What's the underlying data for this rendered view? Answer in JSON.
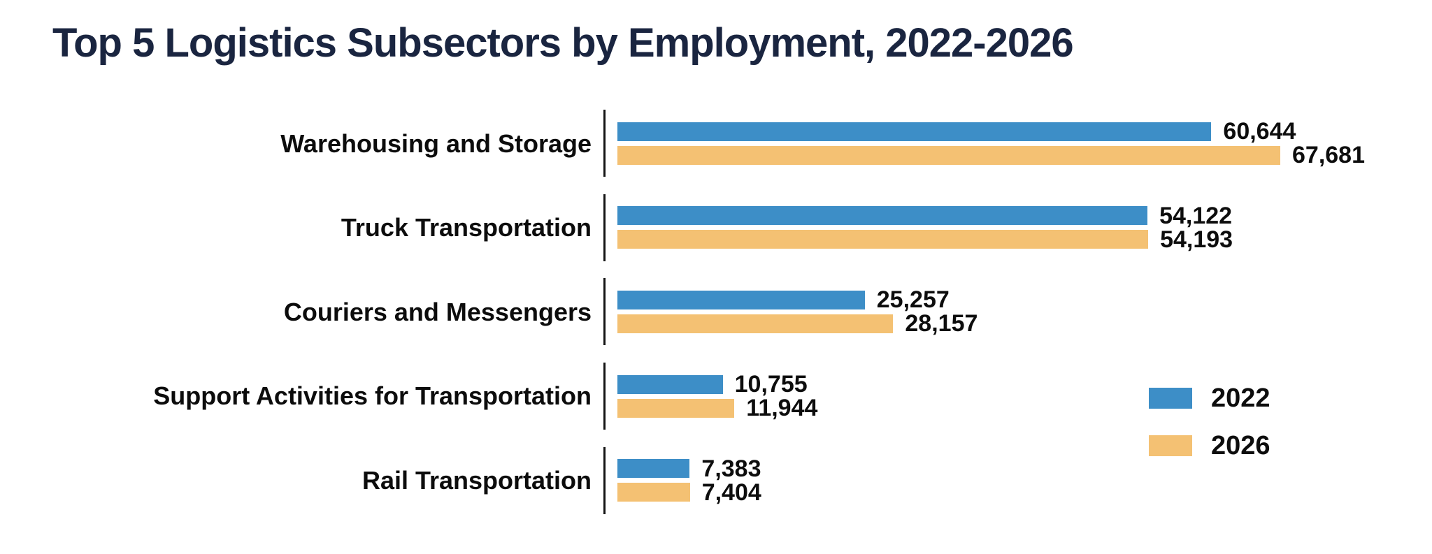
{
  "title": "Top 5 Logistics Subsectors by Employment, 2022-2026",
  "colors": {
    "title_text": "#1a2540",
    "bar_2022": "#3d8ec7",
    "bar_2026": "#f4c173",
    "label_text": "#0d0d0d",
    "axis_tick": "#141414",
    "background": "#ffffff"
  },
  "legend": {
    "items": [
      {
        "label": "2022",
        "color": "#3d8ec7"
      },
      {
        "label": "2026",
        "color": "#f4c173"
      }
    ]
  },
  "chart_data": {
    "type": "bar",
    "orientation": "horizontal",
    "title": "Top 5 Logistics Subsectors by Employment, 2022-2026",
    "categories": [
      "Warehousing and Storage",
      "Truck Transportation",
      "Couriers and Messengers",
      "Support Activities for Transportation",
      "Rail Transportation"
    ],
    "series": [
      {
        "name": "2022",
        "color": "#3d8ec7",
        "values": [
          60644,
          54122,
          25257,
          10755,
          7383
        ],
        "display_values": [
          "60,644",
          "54,122",
          "25,257",
          "10,755",
          "7,383"
        ]
      },
      {
        "name": "2026",
        "color": "#f4c173",
        "values": [
          67681,
          54193,
          28157,
          11944,
          7404
        ],
        "display_values": [
          "67,681",
          "54,193",
          "28,157",
          "11,944",
          "7,404"
        ]
      }
    ],
    "xlim": [
      0,
      67681
    ],
    "value_labels_shown": true,
    "grid": false,
    "legend_position": "right-middle"
  }
}
